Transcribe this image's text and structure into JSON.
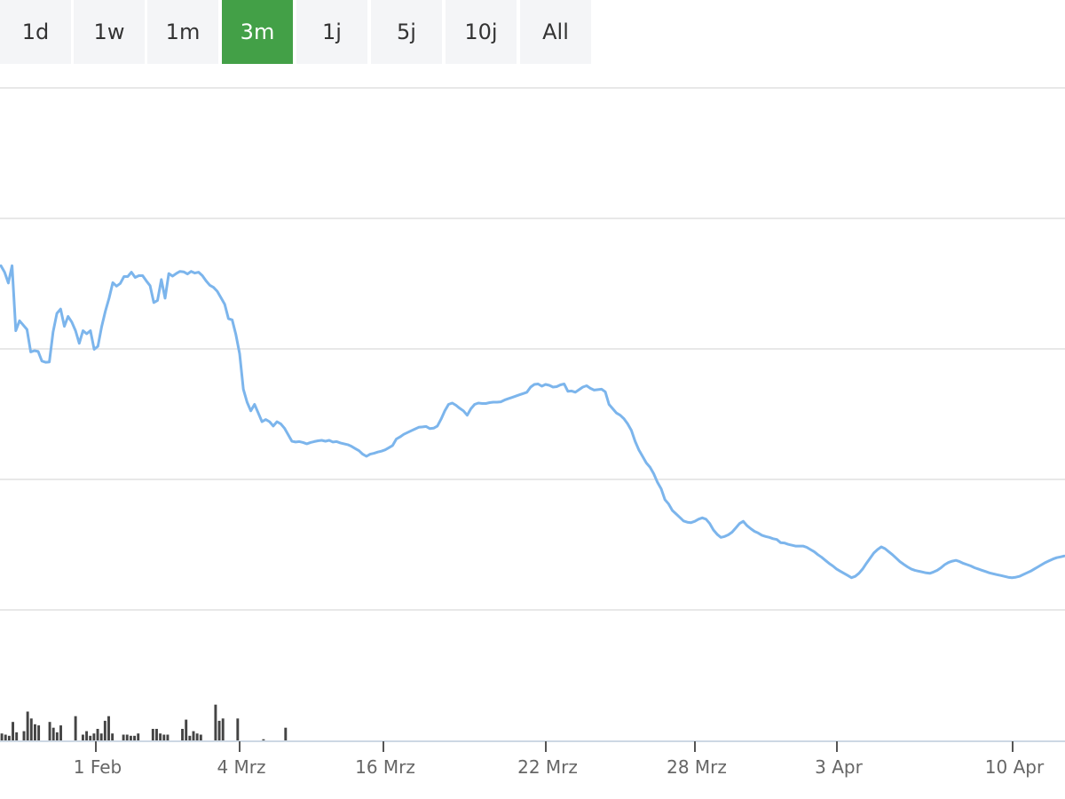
{
  "range_selector": {
    "buttons": [
      "1d",
      "1w",
      "1m",
      "3m",
      "1j",
      "5j",
      "10j",
      "All"
    ],
    "active": "3m"
  },
  "colors": {
    "active_button": "#43a047",
    "price_line": "#7cb5ec",
    "volume_bar": "#444444",
    "gridline": "#e0e0e0",
    "axis_line": "#cdd8e4"
  },
  "chart_data": {
    "type": "line",
    "title": "",
    "xlabel": "",
    "ylabel": "",
    "grid": true,
    "x_ticks": [
      "1 Feb",
      "4 Mrz",
      "16 Mrz",
      "22 Mrz",
      "28 Mrz",
      "3 Apr",
      "10 Apr"
    ],
    "price_ylim": [
      0,
      100
    ],
    "series": [
      {
        "values": [
          73.5,
          72.0,
          69.5,
          73.5,
          58.5,
          60.8,
          59.8,
          58.8,
          53.6,
          53.9,
          53.7,
          51.5,
          51.2,
          51.3,
          58.2,
          62.5,
          63.5,
          59.5,
          61.8,
          60.5,
          58.5,
          55.6,
          58.5,
          57.8,
          58.5,
          54.2,
          54.9,
          59.4,
          63.0,
          66.0,
          69.6,
          68.8,
          69.4,
          71.0,
          71.0,
          72.0,
          70.8,
          71.2,
          71.2,
          70.0,
          68.9,
          65.0,
          65.5,
          70.3,
          66.0,
          71.7,
          71.1,
          71.7,
          72.2,
          72.1,
          71.6,
          72.2,
          71.8,
          72.0,
          71.2,
          70.0,
          69.0,
          68.5,
          67.6,
          66.1,
          64.6,
          61.3,
          61.0,
          57.6,
          53.2,
          45.0,
          42.0,
          40.0,
          41.5,
          39.5,
          37.5,
          38.0,
          37.5,
          36.5,
          37.5,
          37.0,
          36.0,
          34.5,
          33.0,
          32.8,
          32.9,
          32.7,
          32.4,
          32.7,
          32.9,
          33.1,
          33.2,
          33.0,
          33.2,
          32.8,
          32.9,
          32.6,
          32.4,
          32.2,
          31.8,
          31.3,
          30.8,
          30.0,
          29.5,
          30.0,
          30.2,
          30.5,
          30.7,
          31.0,
          31.5,
          32.0,
          33.5,
          34.0,
          34.6,
          35.0,
          35.4,
          35.8,
          36.2,
          36.3,
          36.4,
          35.9,
          36.0,
          36.5,
          38.1,
          40.0,
          41.5,
          41.8,
          41.3,
          40.6,
          40.0,
          39.0,
          40.5,
          41.5,
          41.8,
          41.7,
          41.7,
          41.9,
          42.0,
          42.0,
          42.1,
          42.5,
          42.8,
          43.1,
          43.4,
          43.7,
          44.0,
          44.3,
          45.5,
          46.1,
          46.2,
          45.7,
          46.1,
          45.9,
          45.5,
          45.6,
          46.0,
          46.2,
          44.5,
          44.6,
          44.3,
          44.9,
          45.5,
          45.8,
          45.2,
          44.8,
          44.9,
          45.0,
          44.4,
          41.5,
          40.5,
          39.5,
          39.0,
          38.2,
          37.0,
          35.5,
          33.0,
          31.0,
          29.5,
          28.0,
          27.0,
          25.5,
          23.5,
          22.0,
          19.5,
          18.5,
          17.0,
          16.2,
          15.4,
          14.6,
          14.3,
          14.2,
          14.5,
          15.0,
          15.3,
          15.0,
          14.0,
          12.5,
          11.5,
          10.8,
          11.0,
          11.4,
          12.0,
          13.0,
          14.0,
          14.5,
          13.5,
          12.8,
          12.2,
          11.8,
          11.3,
          11.0,
          10.8,
          10.5,
          10.3,
          9.6,
          9.5,
          9.2,
          9.0,
          8.8,
          8.8,
          8.8,
          8.5,
          8.0,
          7.5,
          6.8,
          6.2,
          5.5,
          4.8,
          4.2,
          3.5,
          3.0,
          2.5,
          2.0,
          1.5,
          1.8,
          2.5,
          3.5,
          4.8,
          6.0,
          7.2,
          8.0,
          8.6,
          8.2,
          7.5,
          6.8,
          6.0,
          5.2,
          4.6,
          4.0,
          3.5,
          3.2,
          3.0,
          2.8,
          2.6,
          2.5,
          2.8,
          3.2,
          3.8,
          4.5,
          5.0,
          5.3,
          5.5,
          5.2,
          4.8,
          4.5,
          4.2,
          3.8,
          3.5,
          3.2,
          2.9,
          2.6,
          2.4,
          2.2,
          2.0,
          1.8,
          1.6,
          1.5,
          1.6,
          1.8,
          2.2,
          2.6,
          3.0,
          3.5,
          4.0,
          4.5,
          5.0,
          5.4,
          5.8,
          6.1,
          6.3,
          6.5
        ]
      }
    ],
    "volume": {
      "ylim": [
        0,
        100
      ],
      "values": [
        6,
        5,
        4,
        16,
        7,
        0,
        8,
        25,
        19,
        14,
        13,
        0,
        0,
        16,
        11,
        7,
        13,
        0,
        0,
        0,
        21,
        0,
        5,
        8,
        4,
        6,
        10,
        6,
        17,
        21,
        6,
        0,
        0,
        5,
        5,
        4,
        4,
        6,
        0,
        0,
        0,
        10,
        10,
        6,
        5,
        5,
        0,
        0,
        0,
        10,
        18,
        4,
        8,
        6,
        5,
        0,
        0,
        0,
        31,
        17,
        19,
        0,
        0,
        0,
        19,
        0,
        0,
        0,
        0,
        0,
        0,
        1,
        0,
        0,
        0,
        0,
        0,
        11,
        0,
        0,
        0,
        0,
        0,
        0,
        0,
        0,
        0,
        0,
        0,
        0,
        0,
        0,
        0,
        0,
        0,
        0,
        0,
        0,
        0,
        0,
        0,
        0,
        0,
        0,
        0,
        0,
        0,
        0,
        0,
        0,
        0,
        0,
        0,
        0,
        0,
        0,
        0,
        0,
        0,
        0,
        0,
        0,
        0,
        0,
        0,
        0,
        0,
        0,
        0,
        0,
        0,
        0,
        0,
        0,
        0,
        0,
        0,
        0,
        0,
        0,
        0,
        0,
        0,
        0,
        0,
        0,
        0,
        0,
        0,
        0,
        0,
        0,
        0,
        0,
        0,
        0,
        0,
        0,
        0,
        0,
        0,
        0,
        0,
        0,
        0,
        0,
        0,
        0,
        0,
        0,
        0,
        0,
        0,
        0,
        0,
        0,
        0,
        0,
        0,
        0,
        0,
        0,
        0,
        0,
        0,
        0,
        0,
        0,
        0,
        0,
        0,
        0,
        0,
        0,
        0,
        0,
        0,
        0,
        0,
        0,
        0,
        0,
        0,
        0,
        0,
        0,
        0,
        0,
        0,
        0,
        0,
        0,
        0,
        0,
        0,
        0,
        0,
        0,
        0,
        0,
        0,
        0,
        0,
        0,
        0,
        0,
        0,
        0,
        0,
        0,
        0,
        0,
        0,
        0,
        0,
        0,
        0,
        0,
        0,
        0,
        0,
        0,
        0,
        0,
        0,
        0,
        0,
        0,
        0,
        0,
        0,
        0,
        0,
        0,
        0,
        0,
        0,
        0,
        0,
        0,
        0,
        0,
        0,
        0,
        0,
        0,
        0,
        0,
        0,
        0,
        0,
        0,
        0,
        0,
        0,
        0,
        0,
        0,
        0,
        0,
        0,
        0,
        0,
        0,
        0,
        0,
        0,
        0,
        0
      ]
    }
  }
}
